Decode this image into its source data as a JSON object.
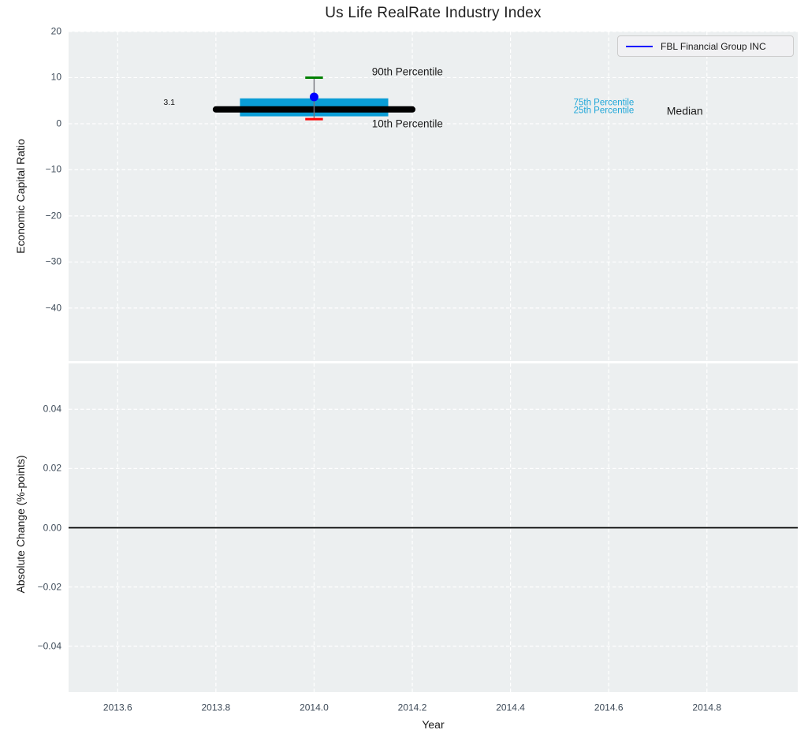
{
  "figure": {
    "title": "Us Life RealRate Industry Index",
    "background": "#ffffff",
    "panel_background": "#eceff0",
    "grid_color": "#ffffff",
    "tick_color": "#3e4b59"
  },
  "legend": {
    "label": "FBL Financial Group INC",
    "line_color": "#0000ff"
  },
  "xaxis": {
    "label": "Year"
  },
  "chart_data": [
    {
      "type": "boxplot",
      "panel": "top",
      "title": "Us Life RealRate Industry Index",
      "xlabel": "Year",
      "ylabel": "Economic Capital Ratio",
      "xlim": [
        2013.5,
        2014.985
      ],
      "ylim": [
        -51.5,
        20
      ],
      "grid": true,
      "xticks": [
        {
          "v": 2013.6,
          "label": "2013.6"
        },
        {
          "v": 2013.8,
          "label": "2013.8"
        },
        {
          "v": 2014.0,
          "label": "2014.0"
        },
        {
          "v": 2014.2,
          "label": "2014.2"
        },
        {
          "v": 2014.4,
          "label": "2014.4"
        },
        {
          "v": 2014.6,
          "label": "2014.6"
        },
        {
          "v": 2014.8,
          "label": "2014.8"
        }
      ],
      "yticks": [
        {
          "v": 20,
          "label": "20"
        },
        {
          "v": 10,
          "label": "10"
        },
        {
          "v": 0,
          "label": "0"
        },
        {
          "v": -10,
          "label": "−10"
        },
        {
          "v": -20,
          "label": "−20"
        },
        {
          "v": -30,
          "label": "−30"
        },
        {
          "v": -40,
          "label": "−40"
        }
      ],
      "box": {
        "x": 2014.0,
        "p90": 10.0,
        "p75": 5.5,
        "median": 3.1,
        "p25": 1.6,
        "p10": 1.0,
        "median_label": "3.1",
        "box_half_width": 0.151,
        "median_half_width": 0.2,
        "cap_half_width": 0.018,
        "box_color": "#0a9dd6",
        "median_color": "#000000",
        "p90_cap_color": "#008000",
        "p10_cap_color": "#ff0000",
        "whisker_color": "#73737b"
      },
      "series": {
        "name": "FBL Financial Group INC",
        "x": 2014.0,
        "value": 5.8,
        "marker": "circle",
        "marker_color": "#0000ff"
      },
      "annotations": [
        {
          "text": "90th Percentile",
          "x": 2014.19,
          "y": 11.1,
          "color": "#1a1a1a",
          "size": 13.5
        },
        {
          "text": "10th Percentile",
          "x": 2014.19,
          "y": -0.1,
          "color": "#1a1a1a",
          "size": 13.5
        },
        {
          "text": "75th Percentile",
          "x": 2014.59,
          "y": 4.5,
          "color": "#1ea6d8",
          "size": 11.5
        },
        {
          "text": "25th Percentile",
          "x": 2014.59,
          "y": 2.8,
          "color": "#1ea6d8",
          "size": 11.5
        },
        {
          "text": "Median",
          "x": 2014.755,
          "y": 2.75,
          "color": "#1a1a1a",
          "size": 14
        },
        {
          "text": "3.1",
          "x": 2013.705,
          "y": 4.35,
          "color": "#111111",
          "size": 10.5
        }
      ]
    },
    {
      "type": "line",
      "panel": "bottom",
      "ylabel": "Absolute Change (%-points)",
      "xlim": [
        2013.5,
        2014.985
      ],
      "ylim": [
        -0.0555,
        0.0555
      ],
      "grid": true,
      "x": [],
      "y": [],
      "zero_line": 0,
      "zero_line_color": "#000000",
      "yticks": [
        {
          "v": 0.04,
          "label": "0.04"
        },
        {
          "v": 0.02,
          "label": "0.02"
        },
        {
          "v": 0.0,
          "label": "0.00"
        },
        {
          "v": -0.02,
          "label": "−0.02"
        },
        {
          "v": -0.04,
          "label": "−0.04"
        }
      ]
    }
  ]
}
